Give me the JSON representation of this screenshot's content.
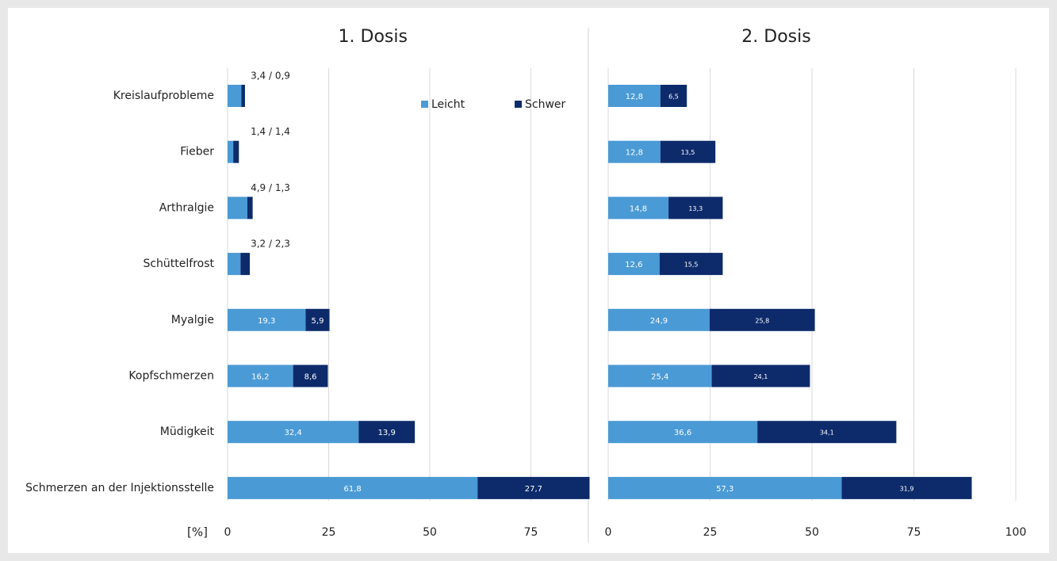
{
  "chart_data": [
    {
      "type": "stacked-barh",
      "title": "1. Dosis",
      "xlabel": "[%]",
      "categories": [
        "Kreislaufprobleme",
        "Fieber",
        "Arthralgie",
        "Schüttelfrost",
        "Myalgie",
        "Kopfschmerzen",
        "Müdigkeit",
        "Schmerzen an der Injektionsstelle"
      ],
      "series": [
        {
          "name": "Leicht",
          "color": "#4a9ad6",
          "values": [
            3.4,
            1.4,
            4.9,
            3.2,
            19.3,
            16.2,
            32.4,
            61.8
          ],
          "value_labels": [
            null,
            null,
            null,
            null,
            "19,3",
            "16,2",
            "32,4",
            "61,8"
          ]
        },
        {
          "name": "Schwer",
          "color": "#0d2b6b",
          "values": [
            0.9,
            1.4,
            1.3,
            2.3,
            5.9,
            8.6,
            13.9,
            27.7
          ],
          "value_labels": [
            null,
            null,
            null,
            null,
            "5,9",
            "8,6",
            "13,9",
            "27,7"
          ]
        }
      ],
      "combined_labels": [
        "3,4 / 0,9",
        "1,4 / 1,4",
        "4,9 / 1,3",
        "3,2 / 2,3",
        null,
        null,
        null,
        null
      ],
      "xlim": [
        0,
        89.5
      ],
      "xticks": [
        0,
        25,
        50,
        75
      ],
      "grid": true,
      "legend": "top"
    },
    {
      "type": "stacked-barh",
      "title": "2. Dosis",
      "series": [
        {
          "color": "#4a9ad6",
          "values": [
            12.8,
            12.8,
            14.8,
            12.6,
            24.9,
            25.4,
            36.6,
            57.3
          ],
          "value_labels": [
            "12,8",
            "12,8",
            "14,8",
            "12,6",
            "24,9",
            "25,4",
            "36,6",
            "57,3"
          ]
        },
        {
          "color": "#0d2b6b",
          "values": [
            6.5,
            13.5,
            13.3,
            15.5,
            25.8,
            24.1,
            34.1,
            31.9
          ],
          "value_labels": [
            "6,5",
            "13,5",
            "13,3",
            "15,5",
            "25,8",
            "24,1",
            "34,1",
            "31,9"
          ]
        }
      ],
      "xlim": [
        0,
        100
      ],
      "xticks": [
        0,
        25,
        50,
        75,
        100
      ],
      "grid": true
    }
  ]
}
